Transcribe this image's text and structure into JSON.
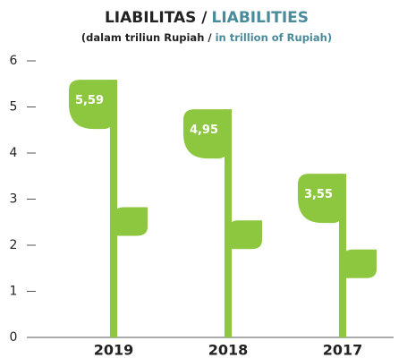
{
  "chart_data": {
    "type": "bar",
    "title": "LIABILITAS /",
    "title_en": "LIABILITIES",
    "subtitle": "(dalam triliun Rupiah /",
    "subtitle_en": "in trillion of Rupiah)",
    "categories": [
      "2019",
      "2018",
      "2017"
    ],
    "values": [
      5.59,
      4.95,
      3.55
    ],
    "value_labels": [
      "5,59",
      "4,95",
      "3,55"
    ],
    "color": "#8dc63f",
    "ylim": [
      0,
      6
    ],
    "yticks": [
      0,
      1,
      2,
      3,
      4,
      5,
      6
    ],
    "grid": false
  }
}
